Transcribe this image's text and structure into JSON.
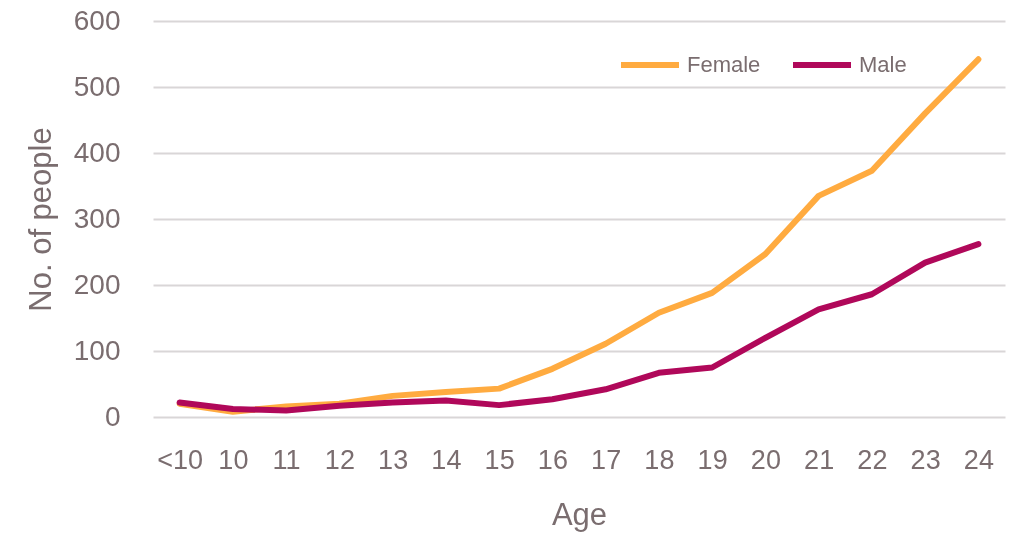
{
  "chart_data": {
    "type": "line",
    "xlabel": "Age",
    "ylabel": "No. of people",
    "categories": [
      "<10",
      "10",
      "11",
      "12",
      "13",
      "14",
      "15",
      "16",
      "17",
      "18",
      "19",
      "20",
      "21",
      "22",
      "23",
      "24"
    ],
    "series": [
      {
        "name": "Female",
        "color": "#ffab40",
        "values": [
          20,
          8,
          16,
          20,
          32,
          38,
          43,
          73,
          111,
          158,
          188,
          247,
          335,
          373,
          460,
          542
        ]
      },
      {
        "name": "Male",
        "color": "#b0085a",
        "values": [
          22,
          12,
          10,
          17,
          22,
          25,
          18,
          27,
          42,
          67,
          75,
          120,
          163,
          186,
          234,
          262
        ]
      }
    ],
    "ylim": [
      0,
      600
    ],
    "yticks": [
      0,
      100,
      200,
      300,
      400,
      500,
      600
    ],
    "grid": "y",
    "legend": "top right",
    "line_style": "solid"
  }
}
